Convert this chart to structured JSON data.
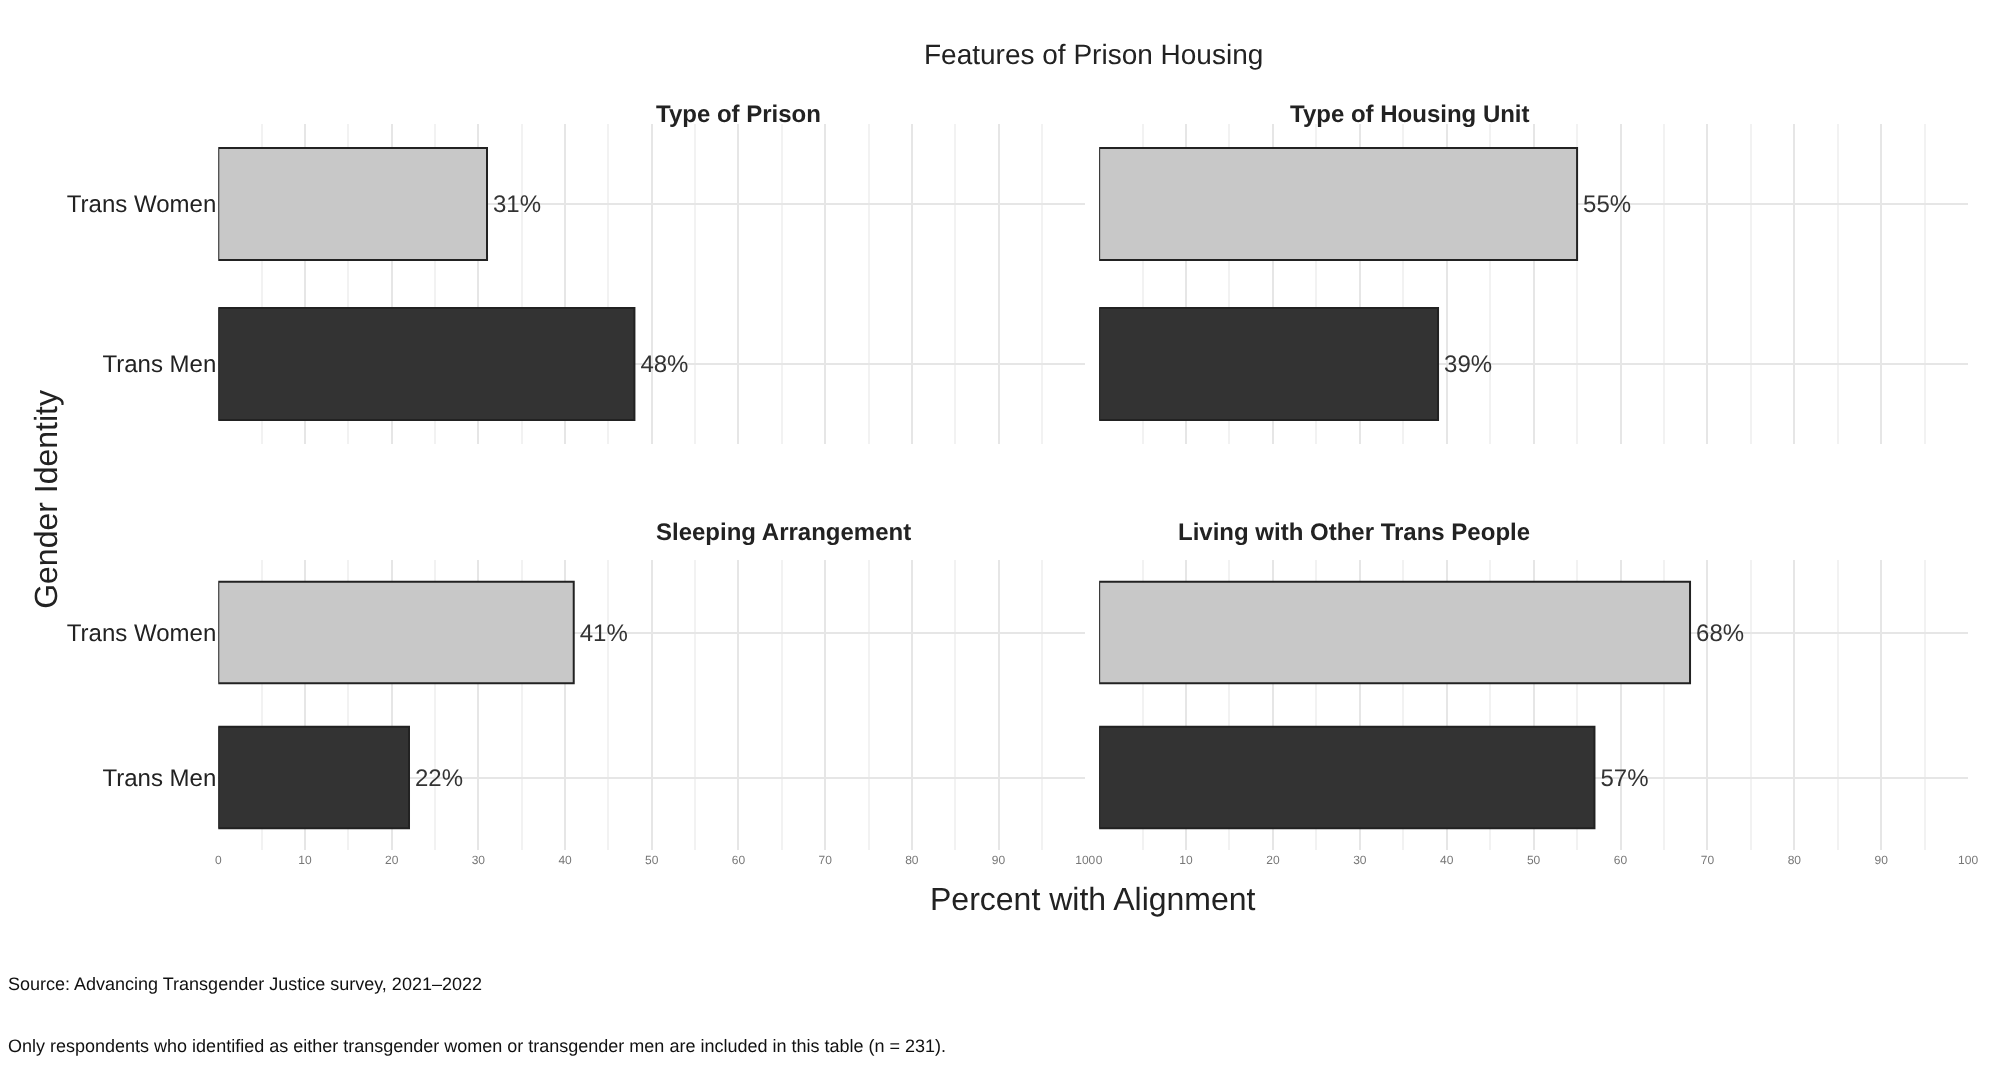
{
  "chart_data": [
    {
      "type": "bar",
      "orientation": "horizontal",
      "title": "Type of Prison",
      "ylabel": "Gender Identity",
      "categories": [
        "Trans Women",
        "Trans Men"
      ],
      "values": [
        31,
        48
      ],
      "colors": [
        "#c8c8c8",
        "#333333"
      ],
      "value_labels": [
        "31%",
        "48%"
      ],
      "xlim": [
        0,
        100
      ],
      "xticks": [
        0,
        10,
        20,
        30,
        40,
        50,
        60,
        70,
        80,
        90,
        100
      ],
      "grid": true,
      "tick_labels": "y",
      "annotations": [
        "Features of Prison Housing",
        "Source: Advancing Transgender Justice survey, 2021–2022",
        "Only respondents who identified as either transgender women or transgender men are included in this table (n = 231)."
      ]
    },
    {
      "type": "bar",
      "orientation": "horizontal",
      "title": "Type of Housing Unit",
      "categories": [
        null,
        null
      ],
      "values": [
        55,
        39
      ],
      "colors": [
        "#c8c8c8",
        "#333333"
      ],
      "value_labels": [
        "55%",
        "39%"
      ],
      "xlim": [
        0,
        100
      ],
      "xticks": [
        0,
        10,
        20,
        30,
        40,
        50,
        60,
        70,
        80,
        90,
        100
      ],
      "grid": true,
      "tick_labels": false
    },
    {
      "type": "bar",
      "orientation": "horizontal",
      "title": "Sleeping Arrangement",
      "xlabel": "Percent with Alignment",
      "categories": [
        "Trans Women",
        "Trans Men"
      ],
      "values": [
        41,
        22
      ],
      "colors": [
        "#c8c8c8",
        "#333333"
      ],
      "value_labels": [
        "41%",
        "22%"
      ],
      "xlim": [
        0,
        100
      ],
      "xticks": [
        0,
        10,
        20,
        30,
        40,
        50,
        60,
        70,
        80,
        90,
        100
      ],
      "grid": true
    },
    {
      "type": "bar",
      "orientation": "horizontal",
      "title": "Living with Other Trans People",
      "categories": [
        null,
        null
      ],
      "values": [
        68,
        57
      ],
      "colors": [
        "#c8c8c8",
        "#333333"
      ],
      "value_labels": [
        "68%",
        "57%"
      ],
      "xlim": [
        0,
        100
      ],
      "xticks": [
        0,
        10,
        20,
        30,
        40,
        50,
        60,
        70,
        80,
        90,
        100
      ],
      "grid": true,
      "tick_labels": "x"
    }
  ]
}
